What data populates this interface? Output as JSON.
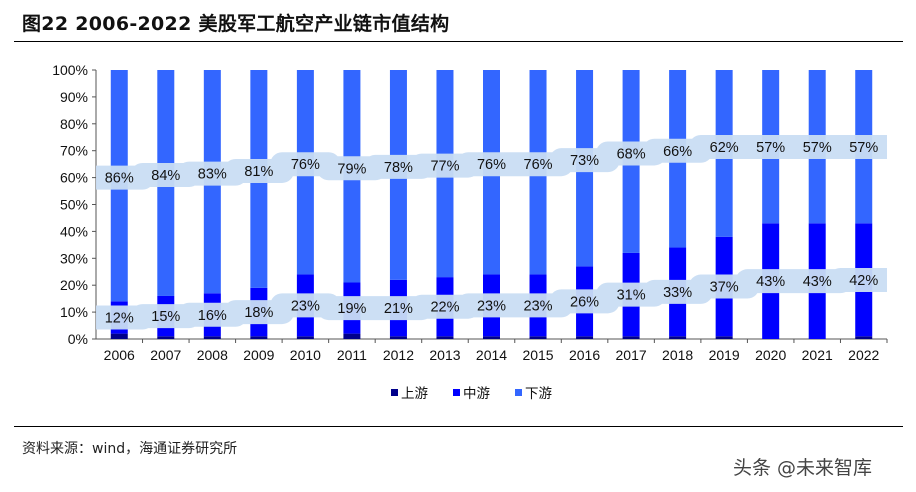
{
  "header": {
    "title": "图22 2006-2022 美股军工航空产业链市值结构"
  },
  "footer": {
    "source": "资料来源：wind，海通证券研究所",
    "watermark": "头条 @未来智库"
  },
  "colors": {
    "upstream": "#00008b",
    "midstream": "#0000ff",
    "downstream": "#3366ff",
    "label_band": "#c9ddf3"
  },
  "chart_data": {
    "type": "bar",
    "stacked": true,
    "title": "图22 2006-2022 美股军工航空产业链市值结构",
    "categories": [
      "2006",
      "2007",
      "2008",
      "2009",
      "2010",
      "2011",
      "2012",
      "2013",
      "2014",
      "2015",
      "2016",
      "2017",
      "2018",
      "2019",
      "2020",
      "2021",
      "2022"
    ],
    "series": [
      {
        "name": "上游",
        "values": [
          2,
          1,
          1,
          1,
          1,
          2,
          1,
          1,
          1,
          1,
          1,
          1,
          1,
          1,
          0,
          0,
          1
        ]
      },
      {
        "name": "中游",
        "values": [
          12,
          15,
          16,
          18,
          23,
          19,
          21,
          22,
          23,
          23,
          26,
          31,
          33,
          37,
          43,
          43,
          42
        ]
      },
      {
        "name": "下游",
        "values": [
          86,
          84,
          83,
          81,
          76,
          79,
          78,
          77,
          76,
          76,
          73,
          68,
          66,
          62,
          57,
          57,
          57
        ]
      }
    ],
    "data_labels": {
      "midstream": [
        "12%",
        "15%",
        "16%",
        "18%",
        "23%",
        "19%",
        "21%",
        "22%",
        "23%",
        "23%",
        "26%",
        "31%",
        "33%",
        "37%",
        "43%",
        "43%",
        "42%"
      ],
      "downstream": [
        "86%",
        "84%",
        "83%",
        "81%",
        "76%",
        "79%",
        "78%",
        "77%",
        "76%",
        "76%",
        "73%",
        "68%",
        "66%",
        "62%",
        "57%",
        "57%",
        "57%"
      ]
    },
    "yticks": [
      "0%",
      "10%",
      "20%",
      "30%",
      "40%",
      "50%",
      "60%",
      "70%",
      "80%",
      "90%",
      "100%"
    ],
    "ylim": [
      0,
      100
    ],
    "xlabel": "",
    "ylabel": "",
    "grid": false,
    "legend": {
      "position": "bottom",
      "entries": [
        "上游",
        "中游",
        "下游"
      ]
    }
  }
}
